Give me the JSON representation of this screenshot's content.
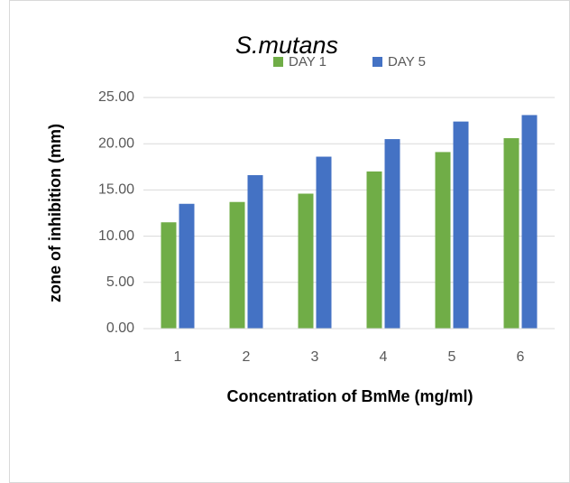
{
  "chart_data": {
    "type": "bar",
    "title": "S.mutans",
    "x_label": "Concentration of BmMe (mg/ml)",
    "y_label": "zone of inhibition (mm)",
    "categories": [
      "1",
      "2",
      "3",
      "4",
      "5",
      "6"
    ],
    "series": [
      {
        "name": "DAY 1",
        "color": "#70ad47",
        "values": [
          11.5,
          13.7,
          14.6,
          17.0,
          19.1,
          20.6
        ]
      },
      {
        "name": "DAY 5",
        "color": "#4472c4",
        "values": [
          13.5,
          16.6,
          18.6,
          20.5,
          22.4,
          23.1
        ]
      }
    ],
    "ylim": [
      0,
      25
    ],
    "yticks": [
      {
        "value": 0,
        "label": "0.00"
      },
      {
        "value": 5,
        "label": "5.00"
      },
      {
        "value": 10,
        "label": "10.00"
      },
      {
        "value": 15,
        "label": "15.00"
      },
      {
        "value": 20,
        "label": "20.00"
      },
      {
        "value": 25,
        "label": "25.00"
      }
    ],
    "grid": true
  }
}
